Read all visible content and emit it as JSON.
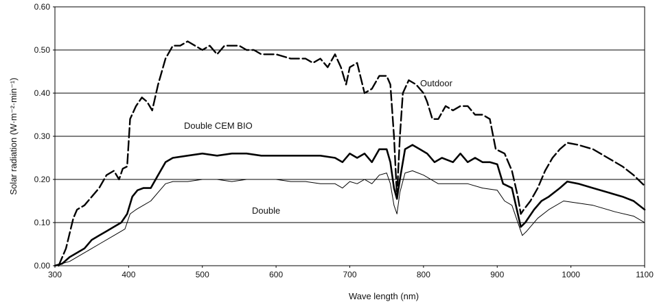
{
  "chart_data": {
    "type": "line",
    "title": "",
    "xlabel": "Wave length (nm)",
    "ylabel": "Solar radiation (W·m⁻²·min⁻¹)",
    "xlim": [
      300,
      1100
    ],
    "ylim": [
      0,
      0.6
    ],
    "x_ticks": [
      "300",
      "400",
      "500",
      "600",
      "700",
      "800",
      "900",
      "1000",
      "1100"
    ],
    "y_ticks": [
      "0.00",
      "0.10",
      "0.20",
      "0.30",
      "0.40",
      "0.50",
      "0.60"
    ],
    "grid": "horizontal",
    "annotations": [
      "Outdoor",
      "Double CEM BIO",
      "Double"
    ],
    "series": [
      {
        "name": "Outdoor",
        "style": "dashed-where-interpolated",
        "points": [
          [
            305,
            0.0
          ],
          [
            315,
            0.04
          ],
          [
            325,
            0.11
          ],
          [
            330,
            0.13
          ],
          [
            340,
            0.14
          ],
          [
            350,
            0.16
          ],
          [
            360,
            0.18
          ],
          [
            370,
            0.21
          ],
          [
            380,
            0.22
          ],
          [
            387,
            0.2
          ],
          [
            392,
            0.225
          ],
          [
            398,
            0.23
          ],
          [
            402,
            0.34
          ],
          [
            410,
            0.37
          ],
          [
            418,
            0.39
          ],
          [
            425,
            0.38
          ],
          [
            432,
            0.36
          ],
          [
            440,
            0.42
          ],
          [
            450,
            0.48
          ],
          [
            460,
            0.51
          ],
          [
            470,
            0.51
          ],
          [
            480,
            0.52
          ],
          [
            490,
            0.51
          ],
          [
            500,
            0.5
          ],
          [
            510,
            0.51
          ],
          [
            520,
            0.49
          ],
          [
            530,
            0.51
          ],
          [
            540,
            0.51
          ],
          [
            550,
            0.51
          ],
          [
            560,
            0.5
          ],
          [
            570,
            0.5
          ],
          [
            580,
            0.49
          ],
          [
            600,
            0.49
          ],
          [
            620,
            0.48
          ],
          [
            640,
            0.48
          ],
          [
            650,
            0.47
          ],
          [
            660,
            0.48
          ],
          [
            670,
            0.46
          ],
          [
            680,
            0.49
          ],
          [
            688,
            0.46
          ],
          [
            695,
            0.42
          ],
          [
            700,
            0.46
          ],
          [
            710,
            0.47
          ],
          [
            720,
            0.4
          ],
          [
            730,
            0.41
          ],
          [
            740,
            0.44
          ],
          [
            750,
            0.44
          ],
          [
            755,
            0.42
          ],
          [
            760,
            0.3
          ],
          [
            764,
            0.16
          ],
          [
            768,
            0.3
          ],
          [
            772,
            0.4
          ],
          [
            780,
            0.43
          ],
          [
            790,
            0.42
          ],
          [
            800,
            0.4
          ],
          [
            805,
            0.38
          ],
          [
            812,
            0.34
          ],
          [
            820,
            0.34
          ],
          [
            830,
            0.37
          ],
          [
            840,
            0.36
          ],
          [
            850,
            0.37
          ],
          [
            860,
            0.37
          ],
          [
            870,
            0.35
          ],
          [
            880,
            0.35
          ],
          [
            890,
            0.34
          ],
          [
            898,
            0.27
          ],
          [
            910,
            0.26
          ],
          [
            920,
            0.22
          ],
          [
            928,
            0.16
          ],
          [
            932,
            0.12
          ],
          [
            936,
            0.13
          ],
          [
            945,
            0.15
          ],
          [
            955,
            0.18
          ],
          [
            965,
            0.22
          ],
          [
            975,
            0.25
          ],
          [
            985,
            0.27
          ],
          [
            995,
            0.285
          ],
          [
            1010,
            0.28
          ],
          [
            1030,
            0.27
          ],
          [
            1050,
            0.25
          ],
          [
            1070,
            0.23
          ],
          [
            1085,
            0.21
          ],
          [
            1100,
            0.185
          ]
        ]
      },
      {
        "name": "Double CEM BIO",
        "style": "bold",
        "points": [
          [
            300,
            0.0
          ],
          [
            310,
            0.005
          ],
          [
            320,
            0.02
          ],
          [
            330,
            0.03
          ],
          [
            340,
            0.04
          ],
          [
            350,
            0.06
          ],
          [
            360,
            0.07
          ],
          [
            370,
            0.08
          ],
          [
            380,
            0.09
          ],
          [
            390,
            0.1
          ],
          [
            398,
            0.12
          ],
          [
            405,
            0.16
          ],
          [
            412,
            0.175
          ],
          [
            420,
            0.18
          ],
          [
            430,
            0.18
          ],
          [
            440,
            0.21
          ],
          [
            450,
            0.24
          ],
          [
            460,
            0.25
          ],
          [
            480,
            0.255
          ],
          [
            500,
            0.26
          ],
          [
            520,
            0.255
          ],
          [
            540,
            0.26
          ],
          [
            560,
            0.26
          ],
          [
            580,
            0.255
          ],
          [
            600,
            0.255
          ],
          [
            620,
            0.255
          ],
          [
            640,
            0.255
          ],
          [
            660,
            0.255
          ],
          [
            680,
            0.25
          ],
          [
            690,
            0.24
          ],
          [
            700,
            0.26
          ],
          [
            710,
            0.25
          ],
          [
            720,
            0.26
          ],
          [
            730,
            0.24
          ],
          [
            740,
            0.27
          ],
          [
            750,
            0.27
          ],
          [
            755,
            0.24
          ],
          [
            760,
            0.18
          ],
          [
            764,
            0.155
          ],
          [
            768,
            0.2
          ],
          [
            775,
            0.27
          ],
          [
            785,
            0.28
          ],
          [
            795,
            0.27
          ],
          [
            805,
            0.26
          ],
          [
            815,
            0.24
          ],
          [
            825,
            0.25
          ],
          [
            840,
            0.24
          ],
          [
            850,
            0.26
          ],
          [
            860,
            0.24
          ],
          [
            870,
            0.25
          ],
          [
            880,
            0.24
          ],
          [
            890,
            0.24
          ],
          [
            900,
            0.235
          ],
          [
            908,
            0.19
          ],
          [
            920,
            0.18
          ],
          [
            928,
            0.12
          ],
          [
            932,
            0.09
          ],
          [
            938,
            0.1
          ],
          [
            950,
            0.13
          ],
          [
            960,
            0.15
          ],
          [
            970,
            0.16
          ],
          [
            985,
            0.18
          ],
          [
            995,
            0.195
          ],
          [
            1010,
            0.19
          ],
          [
            1030,
            0.18
          ],
          [
            1050,
            0.17
          ],
          [
            1070,
            0.16
          ],
          [
            1085,
            0.15
          ],
          [
            1100,
            0.13
          ]
        ]
      },
      {
        "name": "Double",
        "style": "thin",
        "points": [
          [
            300,
            0.0
          ],
          [
            320,
            0.01
          ],
          [
            340,
            0.03
          ],
          [
            360,
            0.05
          ],
          [
            380,
            0.07
          ],
          [
            395,
            0.085
          ],
          [
            402,
            0.12
          ],
          [
            410,
            0.13
          ],
          [
            420,
            0.14
          ],
          [
            430,
            0.15
          ],
          [
            440,
            0.17
          ],
          [
            450,
            0.19
          ],
          [
            460,
            0.195
          ],
          [
            480,
            0.195
          ],
          [
            500,
            0.2
          ],
          [
            520,
            0.2
          ],
          [
            540,
            0.195
          ],
          [
            560,
            0.2
          ],
          [
            580,
            0.2
          ],
          [
            600,
            0.2
          ],
          [
            620,
            0.195
          ],
          [
            640,
            0.195
          ],
          [
            660,
            0.19
          ],
          [
            680,
            0.19
          ],
          [
            690,
            0.18
          ],
          [
            700,
            0.195
          ],
          [
            710,
            0.19
          ],
          [
            720,
            0.2
          ],
          [
            730,
            0.19
          ],
          [
            740,
            0.21
          ],
          [
            750,
            0.215
          ],
          [
            755,
            0.19
          ],
          [
            760,
            0.14
          ],
          [
            764,
            0.12
          ],
          [
            768,
            0.17
          ],
          [
            775,
            0.215
          ],
          [
            785,
            0.22
          ],
          [
            800,
            0.21
          ],
          [
            820,
            0.19
          ],
          [
            840,
            0.19
          ],
          [
            860,
            0.19
          ],
          [
            880,
            0.18
          ],
          [
            900,
            0.175
          ],
          [
            910,
            0.15
          ],
          [
            920,
            0.14
          ],
          [
            930,
            0.09
          ],
          [
            934,
            0.07
          ],
          [
            940,
            0.08
          ],
          [
            955,
            0.11
          ],
          [
            970,
            0.13
          ],
          [
            990,
            0.15
          ],
          [
            1010,
            0.145
          ],
          [
            1030,
            0.14
          ],
          [
            1060,
            0.125
          ],
          [
            1085,
            0.115
          ],
          [
            1100,
            0.1
          ]
        ]
      }
    ]
  }
}
